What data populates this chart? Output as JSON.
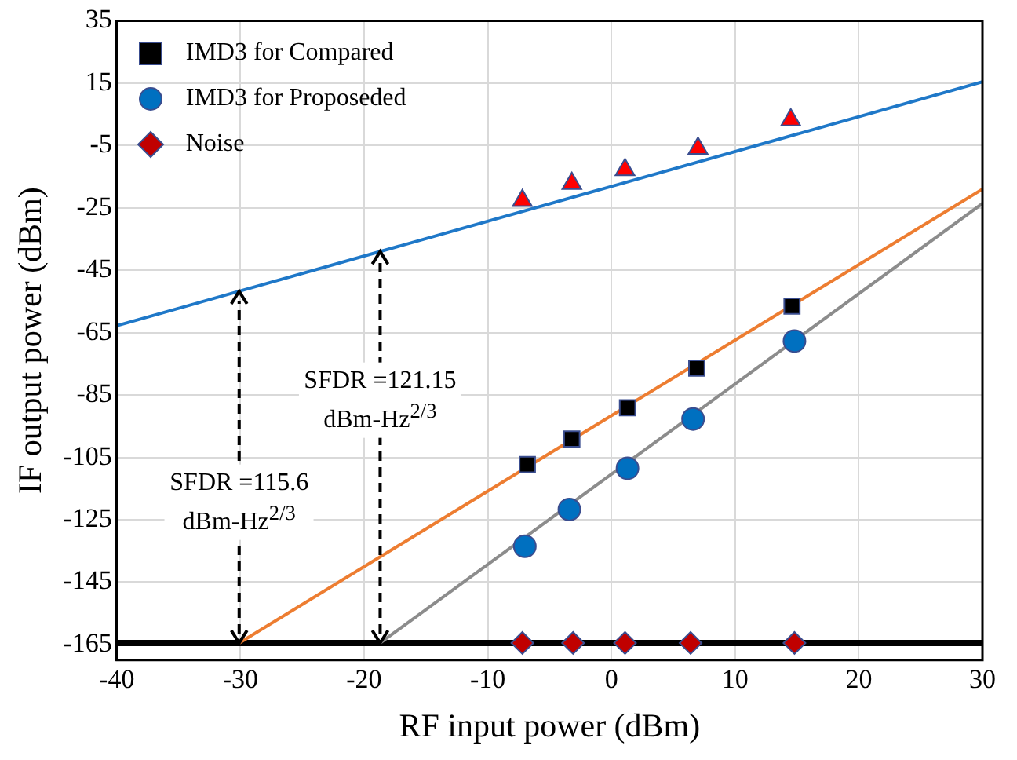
{
  "chart_data": {
    "type": "scatter",
    "xlabel": "RF input power (dBm)",
    "ylabel": "IF output power (dBm)",
    "xlim": [
      -40,
      30
    ],
    "xticks": [
      -40,
      -30,
      -20,
      -10,
      0,
      10,
      20,
      30
    ],
    "ylim": [
      -170,
      35
    ],
    "yticks": [
      -165,
      -145,
      -125,
      -105,
      -85,
      -65,
      -45,
      -25,
      -5,
      15,
      35
    ],
    "grid": true,
    "legend": "top left",
    "series": [
      {
        "type": "line",
        "marker": "none",
        "color": "#1f78c8",
        "x": [
          -40,
          30
        ],
        "values": [
          -62.8,
          15.4
        ]
      },
      {
        "type": "line",
        "marker": "none",
        "color": "#ed7d31",
        "x": [
          -30.1,
          30
        ],
        "values": [
          -164.5,
          -19
        ]
      },
      {
        "type": "line",
        "marker": "none",
        "color": "#8c8c8c",
        "x": [
          -18.7,
          30
        ],
        "values": [
          -164.5,
          -23.6
        ]
      },
      {
        "type": "scatter",
        "marker": "triangle",
        "color": "#ff0000",
        "x": [
          -7.2,
          -3.2,
          1.1,
          7.0,
          14.5
        ],
        "values": [
          -22.7,
          -17.2,
          -12.8,
          -5.9,
          3.2
        ]
      },
      {
        "type": "scatter",
        "name": "IMD3 for Compared",
        "marker": "square",
        "color": "#000000",
        "x": [
          -6.8,
          -3.2,
          1.3,
          6.9,
          14.6
        ],
        "values": [
          -107.3,
          -99.1,
          -89.1,
          -76.4,
          -56.5
        ]
      },
      {
        "type": "scatter",
        "name": "IMD3 for Proposeded",
        "marker": "circle",
        "color": "#0070c0",
        "x": [
          -7.0,
          -3.4,
          1.3,
          6.6,
          14.8
        ],
        "values": [
          -133.5,
          -121.7,
          -108.5,
          -92.7,
          -67.7
        ]
      },
      {
        "type": "scatter",
        "name": "Noise",
        "marker": "diamond",
        "color": "#c00000",
        "x": [
          -7.2,
          -3.1,
          1.1,
          6.4,
          14.8
        ],
        "values": [
          -164.5,
          -164.5,
          -164.5,
          -164.5,
          -164.5
        ]
      }
    ],
    "ref_lines": [
      {
        "axis": "y",
        "value": -164.5,
        "color": "#000000"
      }
    ],
    "annotations": [
      "SFDR =121.15 dBm-Hz$^{2/3}$",
      "SFDR =115.6 dBm-Hz$^{2/3}$"
    ]
  }
}
